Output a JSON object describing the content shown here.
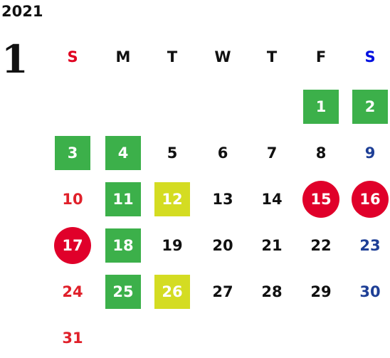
{
  "year": "2021",
  "month": "1",
  "weekdays": [
    "S",
    "M",
    "T",
    "W",
    "T",
    "F",
    "S"
  ],
  "weeks": [
    [
      null,
      null,
      null,
      null,
      null,
      {
        "day": "1",
        "mark": "green"
      },
      {
        "day": "2",
        "mark": "green"
      }
    ],
    [
      {
        "day": "3",
        "mark": "green"
      },
      {
        "day": "4",
        "mark": "green"
      },
      {
        "day": "5"
      },
      {
        "day": "6"
      },
      {
        "day": "7"
      },
      {
        "day": "8"
      },
      {
        "day": "9"
      }
    ],
    [
      {
        "day": "10"
      },
      {
        "day": "11",
        "mark": "green"
      },
      {
        "day": "12",
        "mark": "yellow"
      },
      {
        "day": "13"
      },
      {
        "day": "14"
      },
      {
        "day": "15",
        "mark": "red"
      },
      {
        "day": "16",
        "mark": "red"
      }
    ],
    [
      {
        "day": "17",
        "mark": "red"
      },
      {
        "day": "18",
        "mark": "green"
      },
      {
        "day": "19"
      },
      {
        "day": "20"
      },
      {
        "day": "21"
      },
      {
        "day": "22"
      },
      {
        "day": "23"
      }
    ],
    [
      {
        "day": "24"
      },
      {
        "day": "25",
        "mark": "green"
      },
      {
        "day": "26",
        "mark": "yellow"
      },
      {
        "day": "27"
      },
      {
        "day": "28"
      },
      {
        "day": "29"
      },
      {
        "day": "30"
      }
    ],
    [
      {
        "day": "31"
      },
      null,
      null,
      null,
      null,
      null,
      null
    ]
  ]
}
